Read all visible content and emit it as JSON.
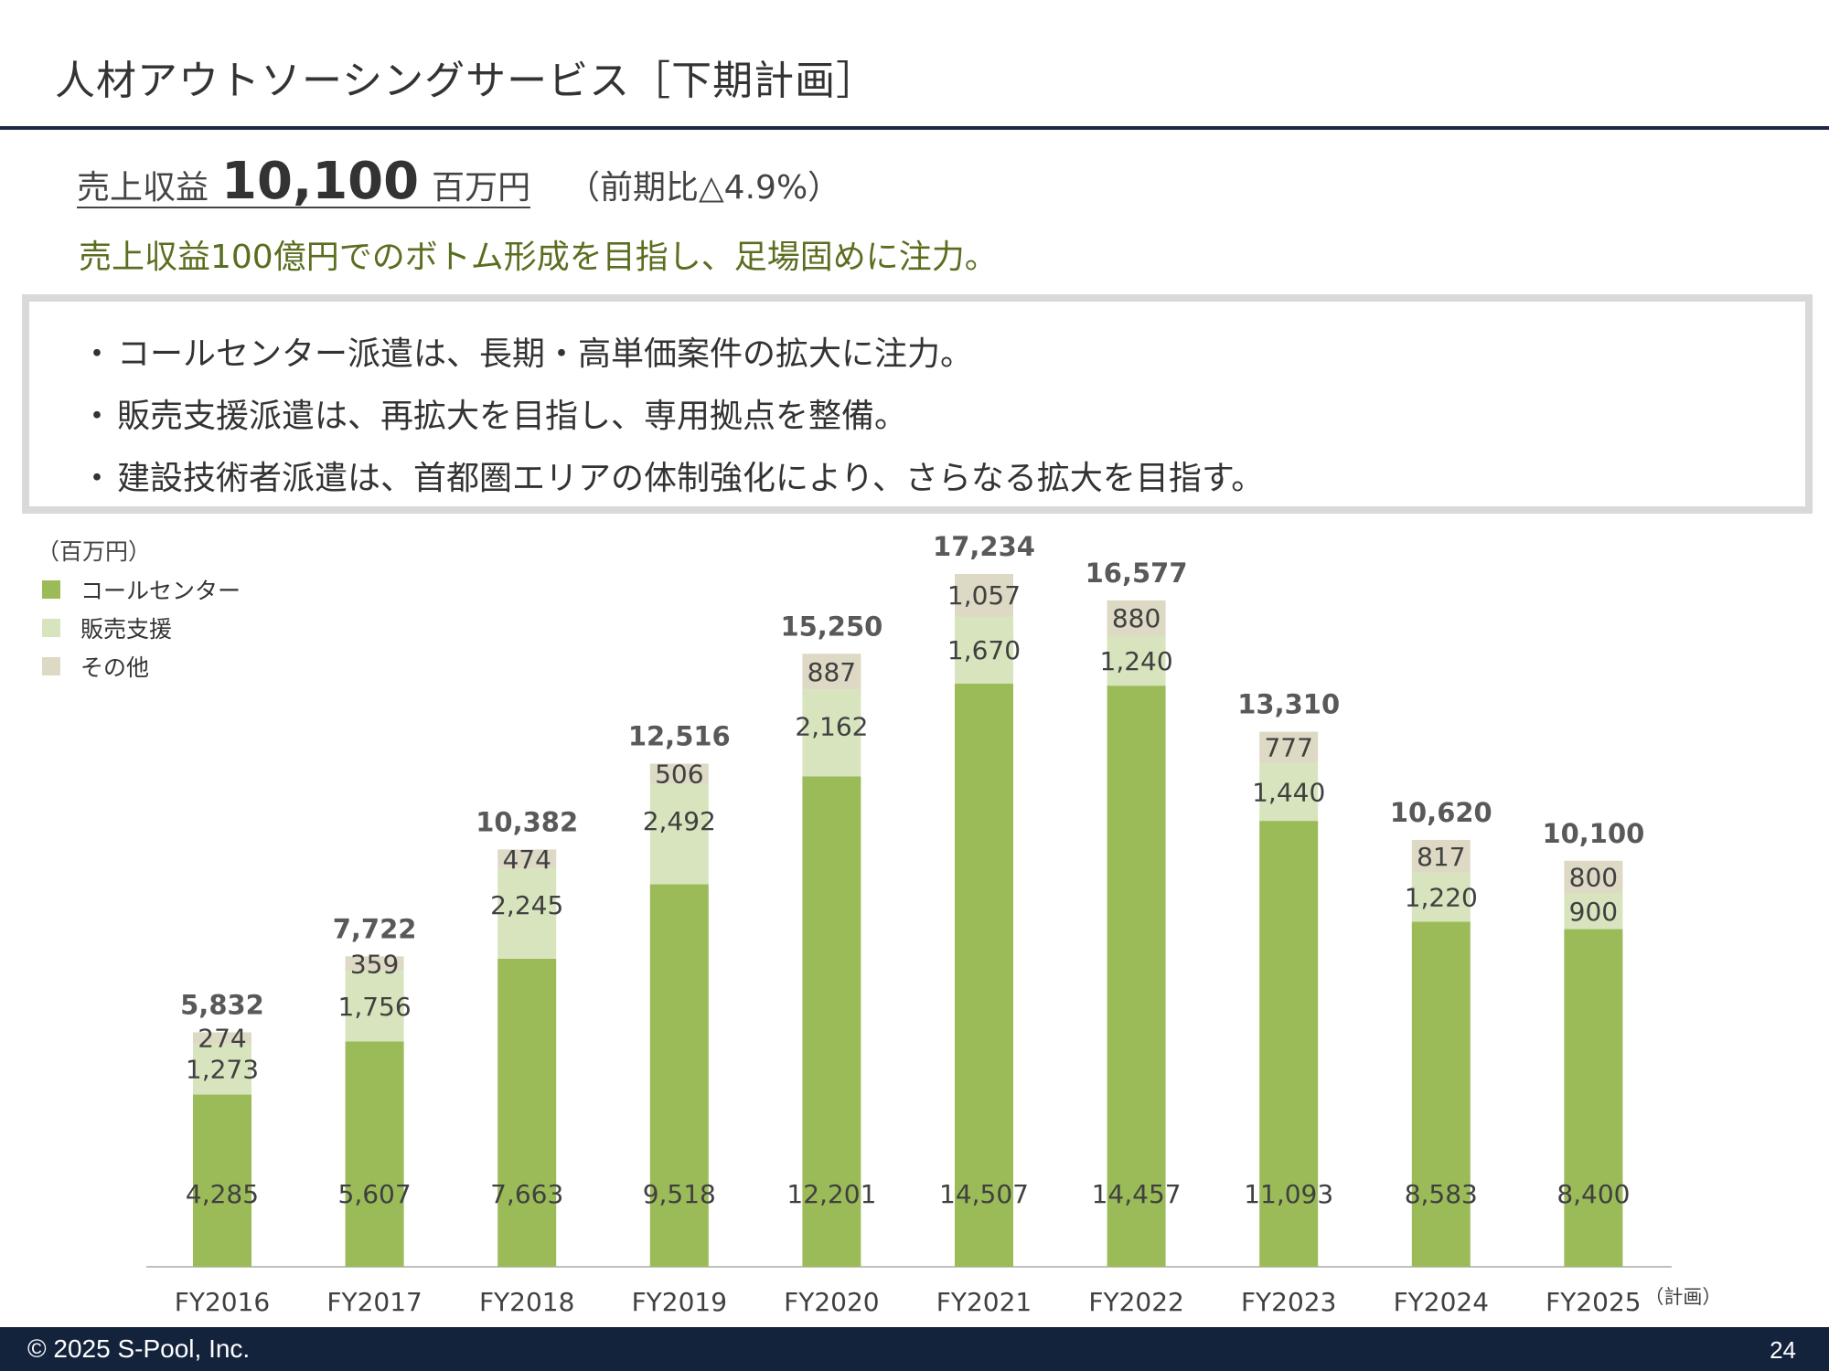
{
  "header": {
    "title": "人材アウトソーシングサービス［下期計画］"
  },
  "headline": {
    "label": "売上収益",
    "value": "10,100",
    "unit": "百万円",
    "note": "（前期比△4.9%）"
  },
  "subline": "売上収益100億円でのボトム形成を目指し、足場固めに注力。",
  "bullets": [
    "コールセンター派遣は、長期・高単価案件の拡大に注力。",
    "販売支援派遣は、再拡大を目指し、専用拠点を整備。",
    "建設技術者派遣は、首都圏エリアの体制強化により、さらなる拡大を目指す。"
  ],
  "colors": {
    "call_center": "#9bbb59",
    "sales_support": "#d7e4bd",
    "other": "#ddd9c4",
    "footer": "#14233c"
  },
  "chart_data": {
    "type": "bar",
    "stacked": true,
    "unit_label": "（百万円）",
    "categories": [
      "FY2016",
      "FY2017",
      "FY2018",
      "FY2019",
      "FY2020",
      "FY2021",
      "FY2022",
      "FY2023",
      "FY2024",
      "FY2025"
    ],
    "category_note": "（計画）",
    "series": [
      {
        "name": "コールセンター",
        "values": [
          4285,
          5607,
          7663,
          9518,
          12201,
          14507,
          14457,
          11093,
          8583,
          8400
        ]
      },
      {
        "name": "販売支援",
        "values": [
          1273,
          1756,
          2245,
          2492,
          2162,
          1670,
          1240,
          1440,
          1220,
          900
        ]
      },
      {
        "name": "その他",
        "values": [
          274,
          359,
          474,
          506,
          887,
          1057,
          880,
          777,
          817,
          800
        ]
      }
    ],
    "totals": [
      5832,
      7722,
      10382,
      12516,
      15250,
      17234,
      16577,
      13310,
      10620,
      10100
    ],
    "ylim": [
      0,
      17234
    ],
    "grid": false,
    "legend": "top-left"
  },
  "footer": {
    "copyright": "© 2025 S-Pool, Inc.",
    "page": "24"
  }
}
